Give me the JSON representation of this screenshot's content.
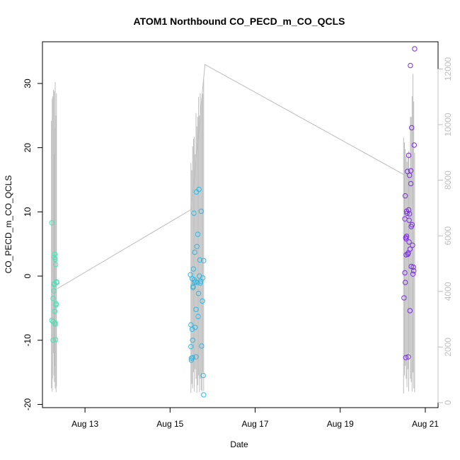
{
  "chart_data": {
    "type": "scatter",
    "title": "ATOM1 Northbound CO_PECD_m_CO_QCLS",
    "xlabel": "Date",
    "ylabel": "CO_PECD_m_CO_QCLS",
    "x_ticks": [
      "Aug 13",
      "Aug 15",
      "Aug 17",
      "Aug 19",
      "Aug 21"
    ],
    "x_tick_days": [
      13,
      15,
      17,
      19,
      21
    ],
    "xlim_days": [
      12.0,
      21.3
    ],
    "ylim": [
      -20.5,
      36.5
    ],
    "y_ticks": [
      -20,
      -10,
      0,
      10,
      20,
      30
    ],
    "right_axis": {
      "ticks": [
        0,
        2000,
        4000,
        6000,
        8000,
        10000,
        12000
      ],
      "ylim": [
        -180,
        12980
      ],
      "color": "#c0c0c0"
    },
    "series": [
      {
        "color": "#40e6b4",
        "x_days": [
          12.22,
          12.22,
          12.25,
          12.25,
          12.25,
          12.27,
          12.27,
          12.28,
          12.28,
          12.29,
          12.29,
          12.3,
          12.3,
          12.3,
          12.31,
          12.31,
          12.32,
          12.32,
          12.33,
          12.34
        ],
        "y": [
          8.3,
          -6.9,
          -7.1,
          -10.0,
          -3.5,
          -2.3,
          -1.3,
          2.9,
          -1.2,
          -5.5,
          3.4,
          -7.3,
          2.6,
          -7.5,
          1.8,
          -9.9,
          -4.5,
          -4.3,
          -0.9,
          -1.0
        ]
      },
      {
        "color": "#2cb8e6",
        "x_days": [
          15.48,
          15.49,
          15.49,
          15.5,
          15.5,
          15.52,
          15.52,
          15.53,
          15.53,
          15.54,
          15.54,
          15.55,
          15.56,
          15.57,
          15.57,
          15.58,
          15.59,
          15.6,
          15.61,
          15.61,
          15.62,
          15.63,
          15.64,
          15.65,
          15.66,
          15.67,
          15.68,
          15.69,
          15.7,
          15.71,
          15.72,
          15.73,
          15.74,
          15.76,
          15.77,
          15.78,
          15.79,
          15.79
        ],
        "y": [
          0.2,
          -7.6,
          -11.0,
          -12.8,
          -13.1,
          -8.3,
          -0.4,
          -12.7,
          -10.0,
          -1.6,
          -1.8,
          1.1,
          9.8,
          -0.6,
          -1.0,
          3.7,
          -8.0,
          -0.9,
          -5.2,
          -12.6,
          13.1,
          4.6,
          -1.0,
          6.5,
          -6.3,
          -2.7,
          13.5,
          0.0,
          2.5,
          -1.1,
          -0.8,
          10.1,
          -10.9,
          -3.9,
          -0.3,
          -15.5,
          2.4,
          -18.5
        ]
      },
      {
        "color": "#7a2be6",
        "x_days": [
          20.5,
          20.52,
          20.52,
          20.53,
          20.53,
          20.54,
          20.54,
          20.55,
          20.55,
          20.56,
          20.56,
          20.57,
          20.58,
          20.59,
          20.6,
          20.6,
          20.61,
          20.61,
          20.62,
          20.62,
          20.63,
          20.63,
          20.64,
          20.64,
          20.65,
          20.66,
          20.66,
          20.67,
          20.67,
          20.68,
          20.69,
          20.7,
          20.71,
          20.72,
          20.73,
          20.74,
          20.75
        ],
        "y": [
          -3.4,
          8.9,
          0.5,
          12.5,
          -1.0,
          6.0,
          -12.7,
          3.3,
          5.8,
          6.2,
          10.1,
          9.8,
          16.3,
          3.4,
          -12.6,
          3.6,
          10.3,
          18.8,
          5.3,
          8.7,
          9.7,
          15.7,
          4.2,
          -5.4,
          32.8,
          16.4,
          14.4,
          1.5,
          7.7,
          23.1,
          8.0,
          4.8,
          0.3,
          1.4,
          0.8,
          20.4,
          35.4
        ]
      }
    ],
    "ref_line": {
      "color": "#bdbdbd",
      "x_days": [
        12.35,
        15.5,
        15.82,
        20.5
      ],
      "y": [
        4100,
        6950,
        12160,
        8200
      ]
    },
    "bursts": [
      {
        "color": "#bdbdbd",
        "x_days": [
          12.21,
          12.23,
          12.24,
          12.26,
          12.27,
          12.28,
          12.29,
          12.3,
          12.32,
          12.33
        ],
        "y_hi": [
          24.2,
          27.6,
          28.0,
          29.0,
          19.0,
          28.8,
          23.0,
          30.2,
          25.0,
          28.5
        ],
        "y_lo": [
          -17.5,
          -18.0,
          -16.0,
          -12.0,
          -15.5,
          -16.5,
          -14.0,
          -17.5,
          -18.1,
          -17.2
        ]
      },
      {
        "color": "#bdbdbd",
        "x_days": [
          15.49,
          15.51,
          15.53,
          15.55,
          15.57,
          15.59,
          15.61,
          15.63,
          15.65,
          15.67,
          15.69,
          15.71,
          15.73,
          15.75,
          15.77,
          15.79
        ],
        "y_hi": [
          17.6,
          16.5,
          20.2,
          21.4,
          21.7,
          19.0,
          25.4,
          23.3,
          24.8,
          27.9,
          25.0,
          28.5,
          26.5,
          27.8,
          28.4,
          30.6
        ],
        "y_lo": [
          -18.2,
          -16.8,
          -17.5,
          -15.0,
          -18.0,
          -14.5,
          -16.0,
          -18.2,
          -17.0,
          -15.5,
          -18.1,
          -16.0,
          -17.8,
          -18.0,
          -15.0,
          -17.9
        ]
      },
      {
        "color": "#bdbdbd",
        "x_days": [
          20.49,
          20.51,
          20.53,
          20.55,
          20.57,
          20.59,
          20.61,
          20.63,
          20.65,
          20.67,
          20.69,
          20.71,
          20.73,
          20.75
        ],
        "y_hi": [
          21.6,
          20.8,
          19.8,
          18.6,
          17.8,
          18.4,
          19.5,
          16.3,
          24.8,
          24.8,
          28.0,
          31.5,
          27.2,
          19.2
        ],
        "y_lo": [
          -18.3,
          -15.5,
          -14.0,
          -16.0,
          -17.3,
          -14.5,
          -18.0,
          -12.0,
          -16.0,
          -16.5,
          -18.0,
          -15.0,
          -17.5,
          -18.1
        ]
      }
    ],
    "grid": false,
    "legend": "none"
  }
}
